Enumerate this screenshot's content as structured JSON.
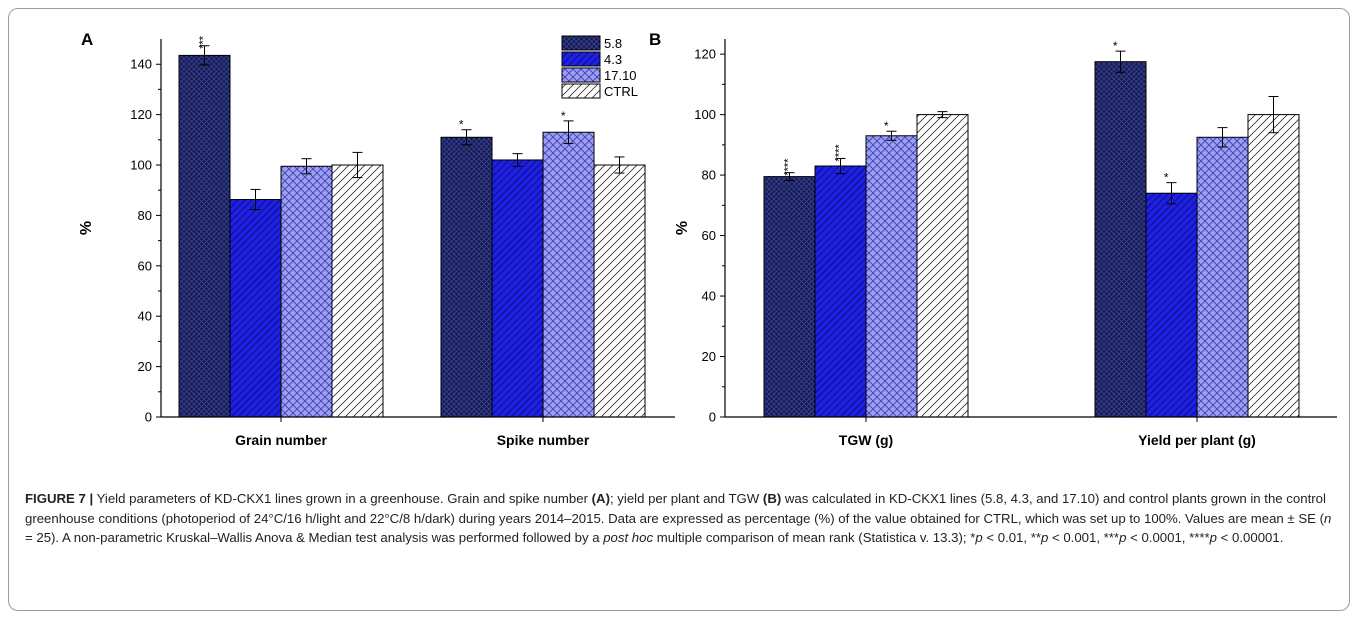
{
  "chart_data": [
    {
      "type": "bar",
      "panel_label": "A",
      "categories": [
        "Grain number",
        "Spike number"
      ],
      "ylabel": "%",
      "ylim": [
        0,
        150
      ],
      "yticks": [
        0,
        20,
        40,
        60,
        80,
        100,
        120,
        140
      ],
      "legend": "top-right",
      "grid": false,
      "series": [
        {
          "name": "5.8",
          "values": [
            143.5,
            111.0
          ],
          "errors": [
            3.8,
            3.0
          ],
          "annotations": [
            "***",
            "*"
          ]
        },
        {
          "name": "4.3",
          "values": [
            86.3,
            102.0
          ],
          "errors": [
            4.0,
            2.5
          ],
          "annotations": [
            "",
            ""
          ]
        },
        {
          "name": "17.10",
          "values": [
            99.5,
            113.0
          ],
          "errors": [
            3.0,
            4.5
          ],
          "annotations": [
            "",
            "*"
          ]
        },
        {
          "name": "CTRL",
          "values": [
            100.0,
            100.0
          ],
          "errors": [
            5.0,
            3.2
          ],
          "annotations": [
            "",
            ""
          ]
        }
      ]
    },
    {
      "type": "bar",
      "panel_label": "B",
      "categories": [
        "TGW (g)",
        "Yield per plant (g)"
      ],
      "ylabel": "%",
      "ylim": [
        0,
        125
      ],
      "yticks": [
        0,
        20,
        40,
        60,
        80,
        100,
        120
      ],
      "grid": false,
      "series": [
        {
          "name": "5.8",
          "values": [
            79.5,
            117.5
          ],
          "errors": [
            1.3,
            3.5
          ],
          "annotations": [
            "****",
            "*"
          ]
        },
        {
          "name": "4.3",
          "values": [
            83.0,
            74.0
          ],
          "errors": [
            2.5,
            3.5
          ],
          "annotations": [
            "****",
            "*"
          ]
        },
        {
          "name": "17.10",
          "values": [
            93.0,
            92.5
          ],
          "errors": [
            1.5,
            3.2
          ],
          "annotations": [
            "*",
            ""
          ]
        },
        {
          "name": "CTRL",
          "values": [
            100.0,
            100.0
          ],
          "errors": [
            1.0,
            6.0
          ],
          "annotations": [
            "",
            ""
          ]
        }
      ]
    }
  ],
  "series_colors": [
    "#141a52",
    "#1f20e6",
    "#9c9ef2",
    "#ffffff"
  ],
  "series_hatch": [
    "crosshatch-dense",
    "diagonal",
    "crosshatch",
    "diagonal-light"
  ],
  "caption": {
    "label": "FIGURE 7 |",
    "t1": " Yield parameters of KD-CKX1 lines grown in a greenhouse. Grain and spike number ",
    "ref_a": "(A)",
    "t2": "; yield per plant and TGW ",
    "ref_b": "(B)",
    "t3": " was calculated in KD-CKX1 lines (5.8, 4.3, and 17.10) and control plants grown in the control greenhouse conditions (photoperiod of 24°C/16 h/light and 22°C/8 h/dark) during years 2014–2015. Data are expressed as percentage (%) of the value obtained for CTRL, which was set up to 100%. Values are mean ± SE (",
    "n_var": "n",
    "t4": " = 25). A non-parametric Kruskal–Wallis Anova & Median test analysis was performed followed by a ",
    "post_hoc": "post hoc",
    "t5": " multiple comparison of mean rank (Statistica v. 13.3); *",
    "p1": "p",
    "t6": " < 0.01, **",
    "p2": "p",
    "t7": " < 0.001, ***",
    "p3": "p",
    "t8": " < 0.0001, ****",
    "p4": "p",
    "t9": " < 0.00001."
  }
}
